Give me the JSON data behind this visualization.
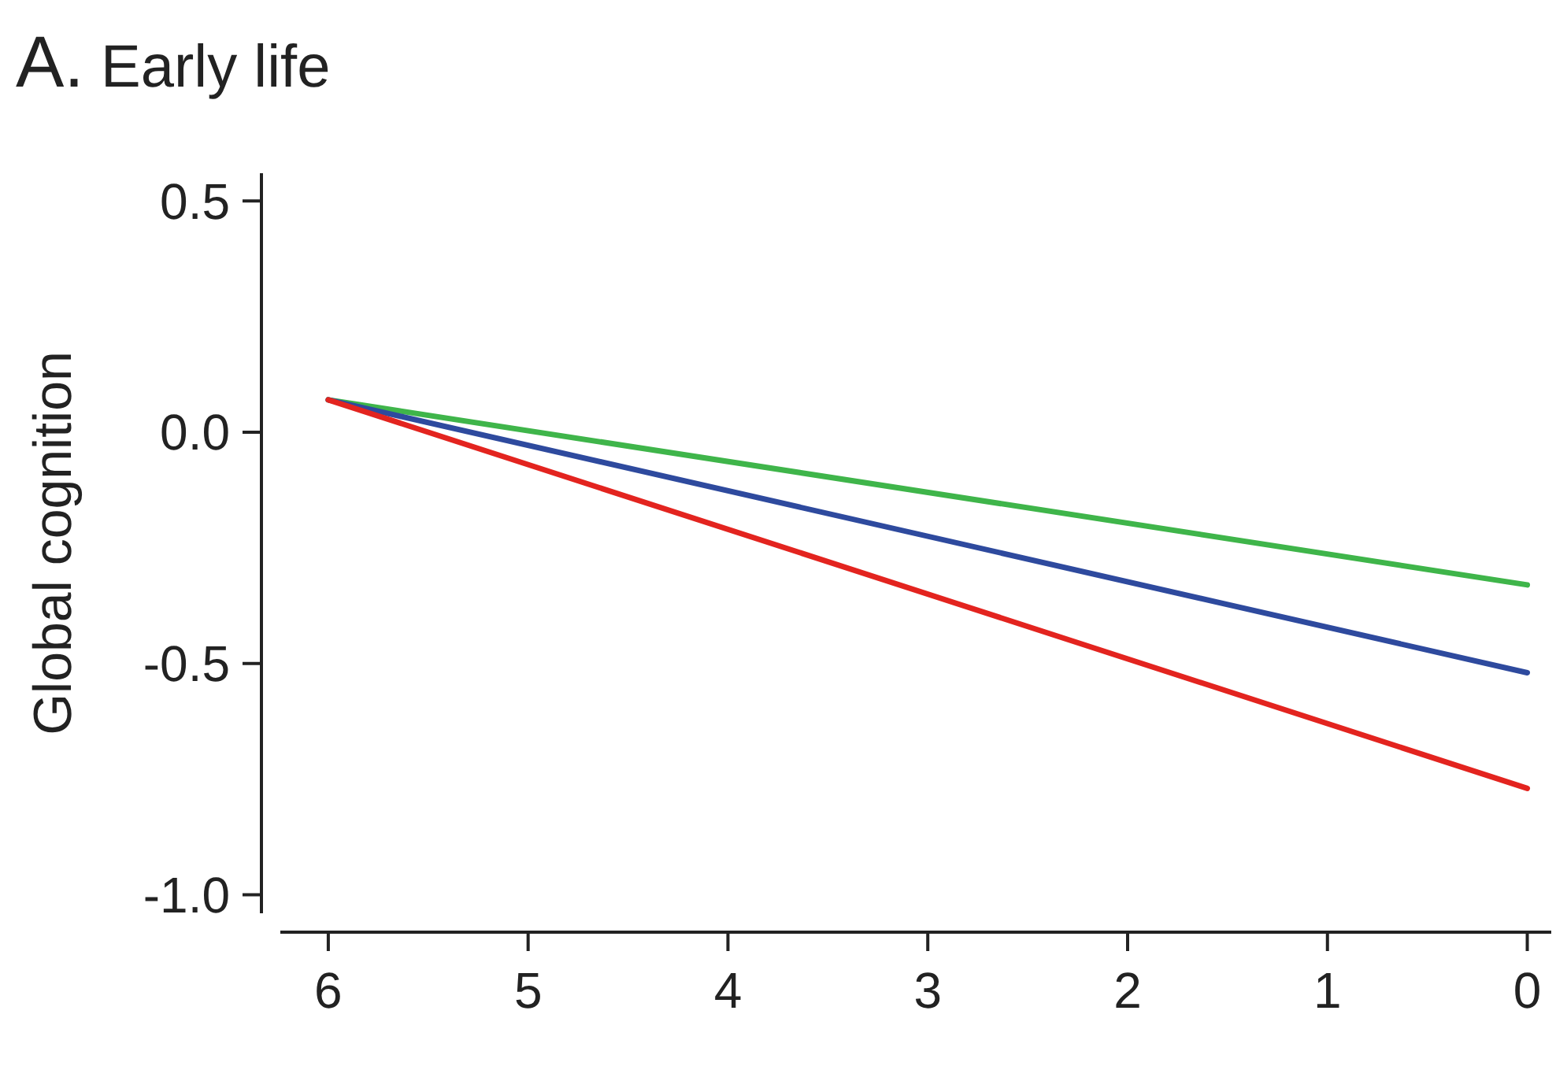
{
  "chart_data": {
    "type": "line",
    "title": "A. Early life",
    "ylabel": "Global cognition",
    "x": [
      6,
      0
    ],
    "series": [
      {
        "color": "#3fb54a",
        "values": [
          0.07,
          -0.33
        ]
      },
      {
        "color": "#2e4a9e",
        "values": [
          0.07,
          -0.52
        ]
      },
      {
        "color": "#e3241f",
        "values": [
          0.07,
          -0.77
        ]
      }
    ],
    "xlim": [
      6.24,
      -0.12
    ],
    "xticks": [
      6,
      5,
      4,
      3,
      2,
      1,
      0
    ],
    "ylim": [
      -1.04,
      0.56
    ],
    "yticks": [
      {
        "value": 0.5,
        "label": "0.5"
      },
      {
        "value": 0,
        "label": "0.0"
      },
      {
        "value": -0.5,
        "label": "-0.5"
      },
      {
        "value": -1,
        "label": "-1.0"
      }
    ],
    "grid": false,
    "marker": "none",
    "line_style": "solid"
  }
}
